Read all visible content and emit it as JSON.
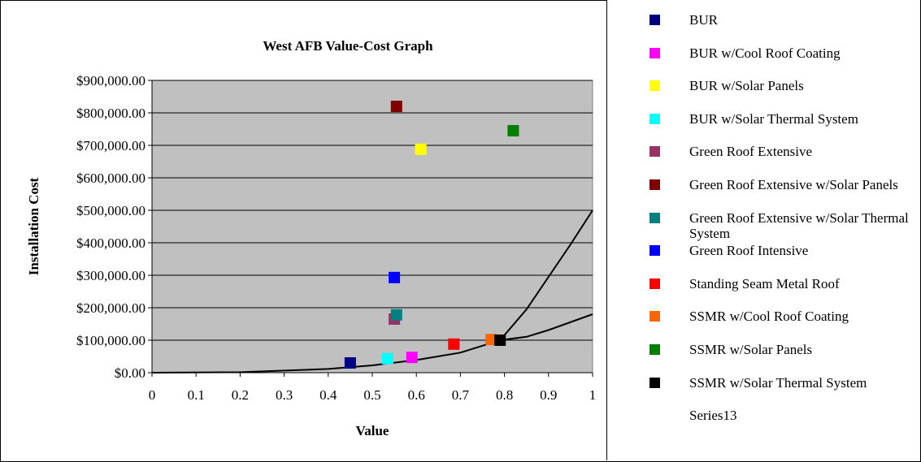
{
  "chart_data": {
    "type": "scatter",
    "title": "West AFB Value-Cost Graph",
    "xlabel": "Value",
    "ylabel": "Installation Cost",
    "xlim": [
      0,
      1
    ],
    "ylim": [
      0,
      900000
    ],
    "x_ticks": [
      "0",
      "0.1",
      "0.2",
      "0.3",
      "0.4",
      "0.5",
      "0.6",
      "0.7",
      "0.8",
      "0.9",
      "1"
    ],
    "y_ticks": [
      "$0.00",
      "$100,000.00",
      "$200,000.00",
      "$300,000.00",
      "$400,000.00",
      "$500,000.00",
      "$600,000.00",
      "$700,000.00",
      "$800,000.00",
      "$900,000.00"
    ],
    "grid": "horizontal",
    "plot_background": "#c0c0c0",
    "legend_position": "right",
    "series": [
      {
        "name": "BUR",
        "color": "#000080",
        "x": 0.45,
        "y": 30000
      },
      {
        "name": "BUR w/Cool Roof Coating",
        "color": "#ff00ff",
        "x": 0.59,
        "y": 47000
      },
      {
        "name": "BUR w/Solar Panels",
        "color": "#ffff00",
        "x": 0.61,
        "y": 688000
      },
      {
        "name": "BUR w/Solar Thermal System",
        "color": "#00ffff",
        "x": 0.535,
        "y": 43000
      },
      {
        "name": "Green Roof Extensive",
        "color": "#993366",
        "x": 0.55,
        "y": 165000
      },
      {
        "name": "Green Roof Extensive w/Solar Panels",
        "color": "#800000",
        "x": 0.555,
        "y": 820000
      },
      {
        "name": "Green Roof Extensive w/Solar Thermal System",
        "color": "#008080",
        "x": 0.555,
        "y": 178000
      },
      {
        "name": "Green Roof Intensive",
        "color": "#0000ff",
        "x": 0.55,
        "y": 293000
      },
      {
        "name": "Standing Seam Metal Roof",
        "color": "#ff0000",
        "x": 0.685,
        "y": 88000
      },
      {
        "name": "SSMR w/Cool Roof Coating",
        "color": "#ff6600",
        "x": 0.77,
        "y": 102000
      },
      {
        "name": "SSMR w/Solar Panels",
        "color": "#008000",
        "x": 0.82,
        "y": 745000
      },
      {
        "name": "SSMR w/Solar Thermal System",
        "color": "#000000",
        "x": 0.79,
        "y": 100000
      },
      {
        "name": "Series13",
        "color": "#000000",
        "points": [
          [
            0,
            0
          ],
          [
            0.2,
            1440
          ],
          [
            0.4,
            11520
          ],
          [
            0.5,
            22500
          ],
          [
            0.6,
            38880
          ],
          [
            0.7,
            61740
          ],
          [
            0.79,
            100000
          ],
          [
            0.85,
            110500
          ],
          [
            0.9,
            131220
          ],
          [
            1.0,
            180000
          ]
        ]
      }
    ],
    "extra_curves": [
      {
        "color": "#000000",
        "points": [
          [
            0.79,
            100000
          ],
          [
            0.85,
            195000
          ],
          [
            0.9,
            295000
          ],
          [
            0.95,
            395000
          ],
          [
            1.0,
            500000
          ]
        ]
      }
    ]
  }
}
